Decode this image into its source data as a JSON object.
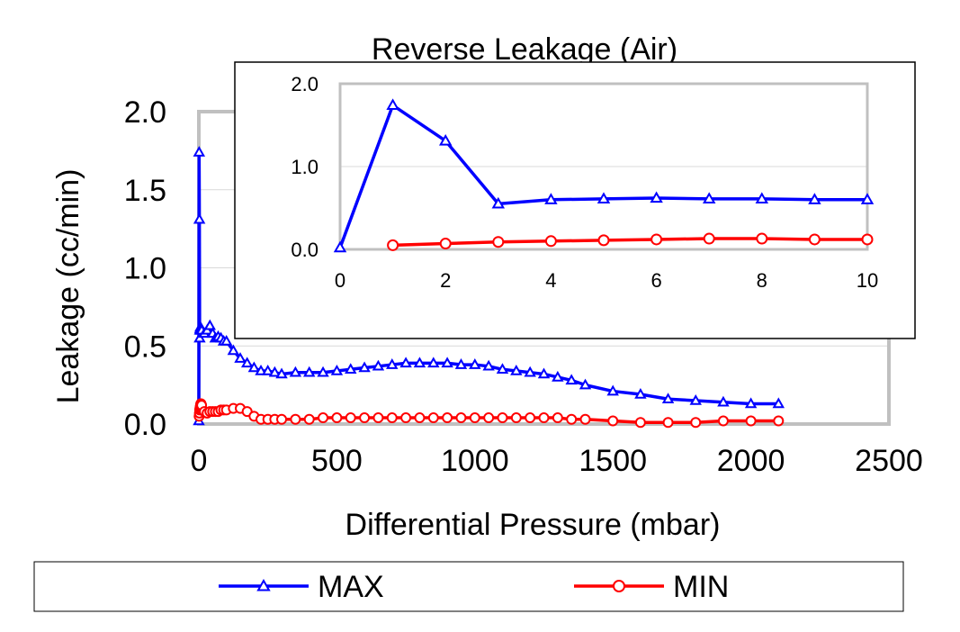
{
  "chart_data": [
    {
      "type": "line",
      "title": "Reverse Leakage (Air)",
      "xlabel": "Differential Pressure (mbar)",
      "ylabel": "Leakage (cc/min)",
      "xlim": [
        0,
        2500
      ],
      "ylim": [
        0,
        2.0
      ],
      "x_ticks": [
        "0",
        "500",
        "1000",
        "1500",
        "2000",
        "2500"
      ],
      "y_ticks": [
        "0.0",
        "0.5",
        "1.0",
        "1.5",
        "2.0"
      ],
      "grid": "horizontal",
      "legend_placement": "bottom",
      "series": [
        {
          "name": "MAX",
          "color": "#0000ff",
          "marker": "triangle",
          "points": [
            [
              0,
              0.02
            ],
            [
              1,
              1.74
            ],
            [
              2,
              1.31
            ],
            [
              3,
              0.55
            ],
            [
              4,
              0.6
            ],
            [
              5,
              0.61
            ],
            [
              6,
              0.62
            ],
            [
              7,
              0.61
            ],
            [
              8,
              0.61
            ],
            [
              9,
              0.6
            ],
            [
              10,
              0.6
            ],
            [
              20,
              0.58
            ],
            [
              30,
              0.6
            ],
            [
              40,
              0.63
            ],
            [
              50,
              0.58
            ],
            [
              60,
              0.55
            ],
            [
              70,
              0.56
            ],
            [
              80,
              0.55
            ],
            [
              90,
              0.53
            ],
            [
              100,
              0.53
            ],
            [
              125,
              0.47
            ],
            [
              150,
              0.42
            ],
            [
              175,
              0.39
            ],
            [
              200,
              0.36
            ],
            [
              225,
              0.34
            ],
            [
              250,
              0.34
            ],
            [
              275,
              0.33
            ],
            [
              300,
              0.32
            ],
            [
              350,
              0.33
            ],
            [
              400,
              0.33
            ],
            [
              450,
              0.33
            ],
            [
              500,
              0.34
            ],
            [
              550,
              0.35
            ],
            [
              600,
              0.36
            ],
            [
              650,
              0.37
            ],
            [
              700,
              0.38
            ],
            [
              750,
              0.39
            ],
            [
              800,
              0.39
            ],
            [
              850,
              0.39
            ],
            [
              900,
              0.39
            ],
            [
              950,
              0.38
            ],
            [
              1000,
              0.38
            ],
            [
              1050,
              0.37
            ],
            [
              1100,
              0.35
            ],
            [
              1150,
              0.34
            ],
            [
              1200,
              0.33
            ],
            [
              1250,
              0.32
            ],
            [
              1300,
              0.3
            ],
            [
              1350,
              0.28
            ],
            [
              1400,
              0.25
            ],
            [
              1500,
              0.21
            ],
            [
              1600,
              0.19
            ],
            [
              1700,
              0.16
            ],
            [
              1800,
              0.15
            ],
            [
              1900,
              0.14
            ],
            [
              2000,
              0.13
            ],
            [
              2100,
              0.13
            ]
          ]
        },
        {
          "name": "MIN",
          "color": "#ff0000",
          "marker": "circle",
          "points": [
            [
              1,
              0.05
            ],
            [
              2,
              0.07
            ],
            [
              3,
              0.09
            ],
            [
              4,
              0.1
            ],
            [
              5,
              0.11
            ],
            [
              6,
              0.12
            ],
            [
              7,
              0.13
            ],
            [
              8,
              0.13
            ],
            [
              9,
              0.12
            ],
            [
              10,
              0.12
            ],
            [
              20,
              0.08
            ],
            [
              30,
              0.07
            ],
            [
              40,
              0.08
            ],
            [
              50,
              0.08
            ],
            [
              60,
              0.08
            ],
            [
              70,
              0.08
            ],
            [
              80,
              0.09
            ],
            [
              90,
              0.09
            ],
            [
              100,
              0.09
            ],
            [
              125,
              0.1
            ],
            [
              150,
              0.1
            ],
            [
              175,
              0.08
            ],
            [
              200,
              0.05
            ],
            [
              225,
              0.03
            ],
            [
              250,
              0.03
            ],
            [
              275,
              0.03
            ],
            [
              300,
              0.03
            ],
            [
              350,
              0.03
            ],
            [
              400,
              0.03
            ],
            [
              450,
              0.04
            ],
            [
              500,
              0.04
            ],
            [
              550,
              0.04
            ],
            [
              600,
              0.04
            ],
            [
              650,
              0.04
            ],
            [
              700,
              0.04
            ],
            [
              750,
              0.04
            ],
            [
              800,
              0.04
            ],
            [
              850,
              0.04
            ],
            [
              900,
              0.04
            ],
            [
              950,
              0.04
            ],
            [
              1000,
              0.04
            ],
            [
              1050,
              0.04
            ],
            [
              1100,
              0.04
            ],
            [
              1150,
              0.04
            ],
            [
              1200,
              0.04
            ],
            [
              1250,
              0.04
            ],
            [
              1300,
              0.04
            ],
            [
              1350,
              0.03
            ],
            [
              1400,
              0.03
            ],
            [
              1500,
              0.02
            ],
            [
              1600,
              0.01
            ],
            [
              1700,
              0.01
            ],
            [
              1800,
              0.01
            ],
            [
              1900,
              0.02
            ],
            [
              2000,
              0.02
            ],
            [
              2100,
              0.02
            ]
          ]
        }
      ]
    },
    {
      "type": "line",
      "role": "inset",
      "xlim": [
        0,
        10
      ],
      "ylim": [
        0,
        2.0
      ],
      "x_ticks": [
        "0",
        "2",
        "4",
        "6",
        "8",
        "10"
      ],
      "y_ticks": [
        "0.0",
        "1.0",
        "2.0"
      ],
      "grid": "horizontal",
      "series": [
        {
          "name": "MAX",
          "color": "#0000ff",
          "marker": "triangle",
          "points": [
            [
              0,
              0.02
            ],
            [
              1,
              1.74
            ],
            [
              2,
              1.31
            ],
            [
              3,
              0.55
            ],
            [
              4,
              0.6
            ],
            [
              5,
              0.61
            ],
            [
              6,
              0.62
            ],
            [
              7,
              0.61
            ],
            [
              8,
              0.61
            ],
            [
              9,
              0.6
            ],
            [
              10,
              0.6
            ]
          ]
        },
        {
          "name": "MIN",
          "color": "#ff0000",
          "marker": "circle",
          "points": [
            [
              1,
              0.05
            ],
            [
              2,
              0.07
            ],
            [
              3,
              0.09
            ],
            [
              4,
              0.1
            ],
            [
              5,
              0.11
            ],
            [
              6,
              0.12
            ],
            [
              7,
              0.13
            ],
            [
              8,
              0.13
            ],
            [
              9,
              0.12
            ],
            [
              10,
              0.12
            ]
          ]
        }
      ]
    }
  ]
}
